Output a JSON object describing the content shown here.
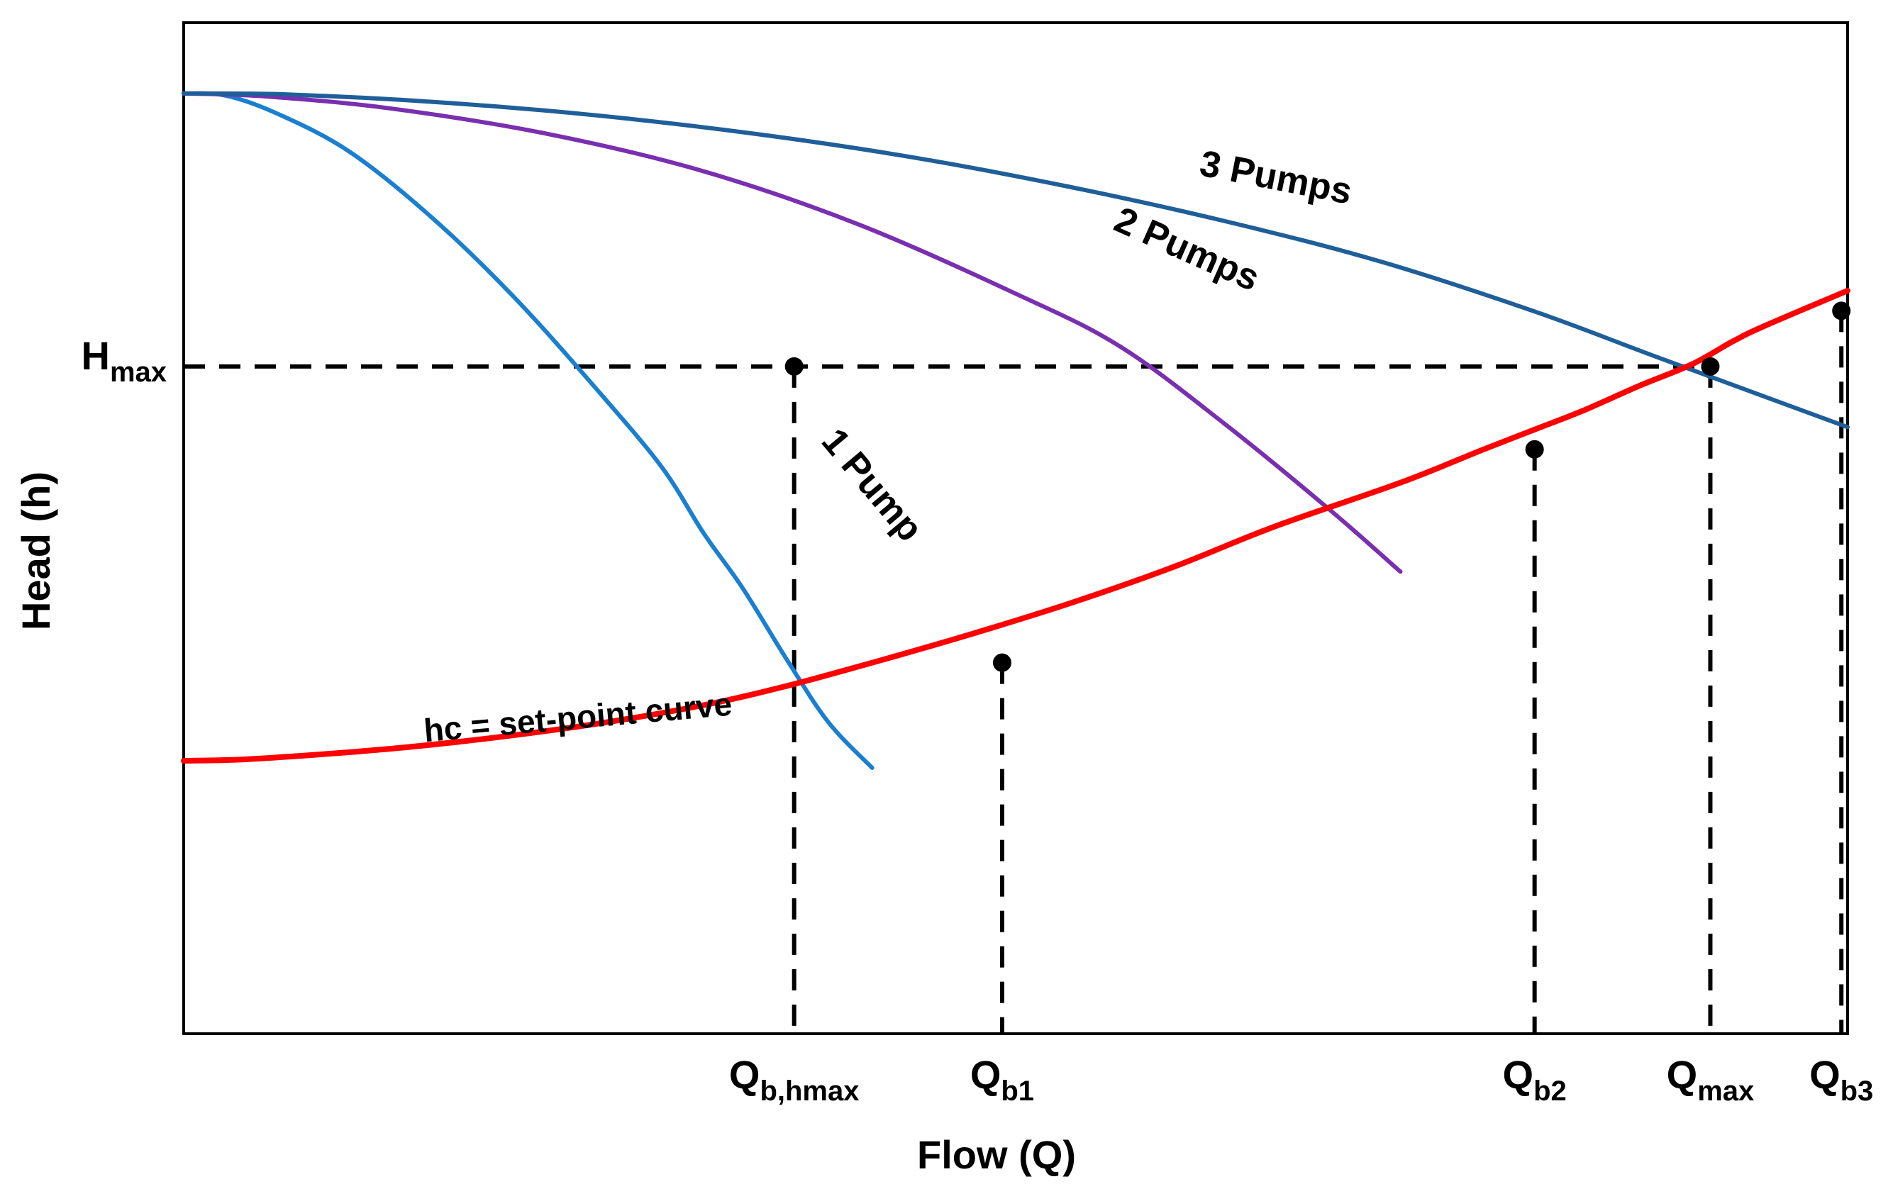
{
  "chart_data": {
    "type": "line",
    "xlabel": "Flow (Q)",
    "ylabel": "Head (h)",
    "xlim": [
      0,
      1600
    ],
    "ylim": [
      0,
      1000
    ],
    "series": [
      {
        "name": "1 Pump",
        "color": "#1a7fd0",
        "points": [
          [
            0,
            930
          ],
          [
            40,
            928
          ],
          [
            90,
            910
          ],
          [
            160,
            872
          ],
          [
            240,
            806
          ],
          [
            320,
            726
          ],
          [
            400,
            634
          ],
          [
            460,
            560
          ],
          [
            500,
            495
          ],
          [
            538,
            440
          ],
          [
            580,
            370
          ],
          [
            620,
            308
          ],
          [
            662,
            263
          ]
        ]
      },
      {
        "name": "2 Pumps",
        "color": "#7a2fb0",
        "points": [
          [
            0,
            930
          ],
          [
            80,
            927
          ],
          [
            200,
            915
          ],
          [
            350,
            890
          ],
          [
            500,
            853
          ],
          [
            650,
            800
          ],
          [
            800,
            732
          ],
          [
            900,
            680
          ],
          [
            1000,
            604
          ],
          [
            1100,
            520
          ],
          [
            1170,
            457
          ]
        ]
      },
      {
        "name": "3 Pumps",
        "color": "#1f5f99",
        "points": [
          [
            0,
            930
          ],
          [
            100,
            929
          ],
          [
            250,
            921
          ],
          [
            400,
            908
          ],
          [
            550,
            890
          ],
          [
            700,
            867
          ],
          [
            850,
            838
          ],
          [
            1000,
            804
          ],
          [
            1150,
            764
          ],
          [
            1300,
            714
          ],
          [
            1420,
            668
          ],
          [
            1600,
            600
          ]
        ]
      },
      {
        "name": "hc = set-point curve",
        "color": "#ff0000",
        "points": [
          [
            0,
            270
          ],
          [
            50,
            271
          ],
          [
            100,
            274
          ],
          [
            200,
            282
          ],
          [
            300,
            293
          ],
          [
            400,
            307
          ],
          [
            500,
            325
          ],
          [
            580,
            344
          ],
          [
            662,
            367
          ],
          [
            750,
            393
          ],
          [
            850,
            425
          ],
          [
            950,
            461
          ],
          [
            1050,
            502
          ],
          [
            1170,
            545
          ],
          [
            1250,
            578
          ],
          [
            1300,
            598
          ],
          [
            1345,
            616
          ],
          [
            1400,
            641
          ],
          [
            1450,
            662
          ],
          [
            1490,
            685
          ],
          [
            1520,
            700
          ],
          [
            1600,
            735
          ]
        ]
      }
    ],
    "reference_points": [
      {
        "label": "Q",
        "sub": "b,hmax",
        "x": 587,
        "y": 660
      },
      {
        "label": "Q",
        "sub": "b1",
        "x": 787,
        "y": 367
      },
      {
        "label": "Q",
        "sub": "b2",
        "x": 1299,
        "y": 578
      },
      {
        "label": "Q",
        "sub": "max",
        "x": 1468,
        "y": 660
      },
      {
        "label": "Q",
        "sub": "b3",
        "x": 1594,
        "y": 715
      }
    ],
    "hmax": {
      "label": "H",
      "sub": "max",
      "y": 660
    },
    "curve_labels": [
      {
        "text": "3 Pumps",
        "x": 1048,
        "y": 835,
        "angle": 11
      },
      {
        "text": "2 Pumps",
        "x": 960,
        "y": 765,
        "angle": 24
      },
      {
        "text": "1 Pump",
        "x": 653,
        "y": 535,
        "angle": 50
      },
      {
        "text": "hc = set-point curve",
        "x": 380,
        "y": 302,
        "angle": -5
      }
    ]
  }
}
